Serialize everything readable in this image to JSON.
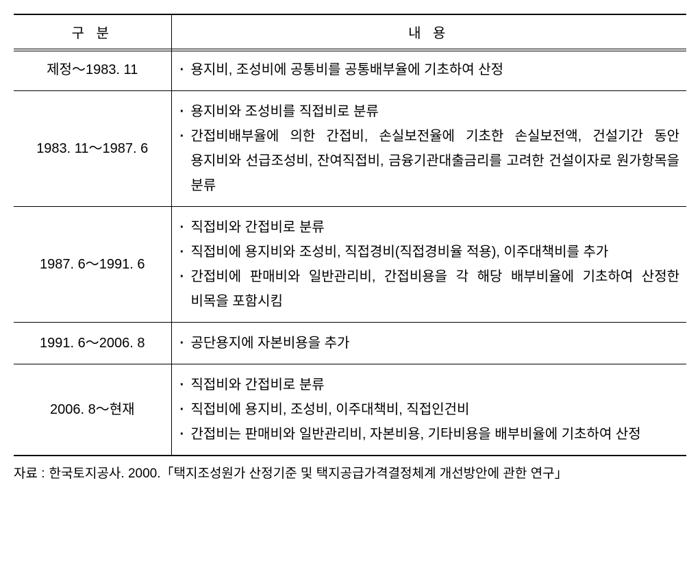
{
  "table": {
    "header_col1": "구   분",
    "header_col2": "내      용",
    "rows": [
      {
        "period": "제정～1983. 11",
        "items": [
          "용지비,  조성비에  공통비를  공통배부율에  기초하여 산정"
        ]
      },
      {
        "period": "1983. 11～1987. 6",
        "items": [
          "용지비와 조성비를 직접비로 분류",
          "간접비배부율에  의한  간접비,  손실보전율에  기초한 손실보전액,  건설기간  동안  용지비와  선급조성비,  잔여직접비,  금융기관대출금리를  고려한  건설이자로  원가항목을 분류"
        ]
      },
      {
        "period": "1987. 6～1991. 6",
        "items": [
          "직접비와 간접비로 분류",
          "직접비에  용지비와  조성비,  직접경비(직접경비율  적용), 이주대책비를 추가",
          "간접비에  판매비와  일반관리비,  간접비용을  각  해당 배부비율에 기초하여 산정한 비목을 포함시킴"
        ]
      },
      {
        "period": "1991. 6～2006. 8",
        "items": [
          "공단용지에 자본비용을 추가"
        ]
      },
      {
        "period": "2006. 8～현재",
        "items": [
          "직접비와 간접비로 분류",
          "직접비에 용지비, 조성비, 이주대책비, 직접인건비",
          "간접비는  판매비와  일반관리비,  자본비용,  기타비용을 배부비율에 기초하여 산정"
        ]
      }
    ]
  },
  "footnote": {
    "label": "자료 :",
    "text": "한국토지공사. 2000.「택지조성원가 산정기준 및 택지공급가격결정체계 개선방안에 관한 연구」"
  },
  "colors": {
    "text": "#000000",
    "background": "#ffffff",
    "border": "#000000"
  },
  "typography": {
    "body_fontsize": 20,
    "footnote_fontsize": 19,
    "line_height": 1.8
  }
}
